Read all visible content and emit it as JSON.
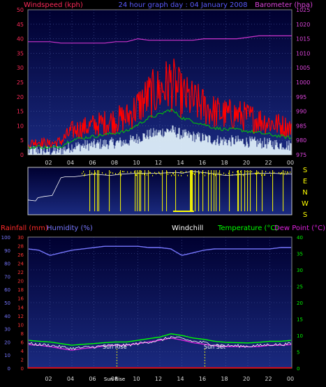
{
  "header": {
    "left_label": "Windspeed (kph)",
    "center_label": "24 hour graph day : 04 January 2008",
    "right_label": "Barometer (hpa)"
  },
  "colors": {
    "wind": "#ff0000",
    "gust_green": "#00cc00",
    "wind_light": "#e8f8ff",
    "baro": "#cc33cc",
    "direction": "#ffff00",
    "plot_top": "#000030",
    "plot_bottom": "#1a2a80",
    "rain": "#ff0000",
    "humidity": "#7777ff",
    "windchill": "#ffffff",
    "temperature": "#00ff00",
    "dewpoint": "#dd22dd",
    "sun_line": "#ffff00"
  },
  "x_ticks": [
    "02",
    "04",
    "06",
    "08",
    "10",
    "12",
    "14",
    "16",
    "18",
    "20",
    "22",
    "00"
  ],
  "top_chart": {
    "left_ticks": [
      "50",
      "45",
      "40",
      "35",
      "30",
      "25",
      "20",
      "15",
      "10",
      "5",
      "0"
    ],
    "right_ticks": [
      "1025",
      "1020",
      "1015",
      "1010",
      "1005",
      "1000",
      "995",
      "990",
      "985",
      "980",
      "975"
    ]
  },
  "direction_labels": [
    "S",
    "E",
    "N",
    "W",
    "S"
  ],
  "bottom_header": {
    "rainfall": "Rainfall (mm)",
    "humidity": "Humidity (%)",
    "windchill": "Windchill",
    "temperature": "Temperature (°C)",
    "dewpoint": "Dew Point (°C)"
  },
  "bottom_chart": {
    "left_outer_ticks": [
      "100",
      "90",
      "80",
      "70",
      "60",
      "50",
      "40",
      "30",
      "20",
      "10",
      "0"
    ],
    "left_inner_ticks": [
      "30",
      "28",
      "26",
      "24",
      "22",
      "20",
      "18",
      "16",
      "14",
      "12",
      "10",
      "8",
      "6",
      "4",
      "2",
      "0"
    ],
    "right_ticks": [
      "40",
      "35",
      "30",
      "25",
      "20",
      "15",
      "10",
      "5",
      "0"
    ]
  },
  "sun": {
    "rise_label": "Sun Rise",
    "set_label": "Sun Set",
    "x_label": "Sun Rise"
  },
  "chart_data": [
    {
      "type": "line",
      "title": "24 hour graph day : 04 January 2008",
      "ylabel": "Windspeed (kph)",
      "ylabel_right": "Barometer (hpa)",
      "ylim": [
        0,
        50
      ],
      "ylim_right": [
        975,
        1025
      ],
      "x_hours": [
        0,
        1,
        2,
        3,
        4,
        5,
        6,
        7,
        8,
        9,
        10,
        11,
        12,
        13,
        14,
        15,
        16,
        17,
        18,
        19,
        20,
        21,
        22,
        23,
        24
      ],
      "series": [
        {
          "name": "Windspeed (kph)",
          "values": [
            4,
            5,
            4,
            5,
            9,
            10,
            11,
            12,
            13,
            14,
            18,
            22,
            24,
            27,
            22,
            20,
            18,
            16,
            15,
            15,
            14,
            13,
            12,
            11,
            10
          ]
        },
        {
          "name": "Barometer (hpa)",
          "values": [
            1014,
            1014,
            1014,
            1013.5,
            1013.5,
            1013.5,
            1013.5,
            1013.5,
            1014,
            1014,
            1015,
            1014.5,
            1014.5,
            1014.5,
            1014.5,
            1014.5,
            1015,
            1015,
            1015,
            1015,
            1015.5,
            1016,
            1016,
            1016,
            1016
          ]
        }
      ]
    },
    {
      "type": "line",
      "title": "",
      "direction_hours": [
        0,
        0.7,
        0.9,
        1.5,
        2.2,
        3.0,
        3.4,
        4.2,
        6.0,
        7.5,
        8.5,
        10.0,
        12.0,
        13.5,
        14.0,
        15.0,
        16.5,
        18.0,
        20.0,
        21.0,
        22.0,
        24.0
      ],
      "direction_values": [
        30,
        28,
        35,
        38,
        40,
        80,
        82,
        82,
        88,
        85,
        88,
        90,
        90,
        92,
        90,
        94,
        90,
        85,
        88,
        90,
        90,
        88
      ]
    },
    {
      "type": "line",
      "ylabel": "Humidity (%)",
      "ylim": [
        0,
        100
      ],
      "ylim_temp": [
        0,
        40
      ],
      "x_hours": [
        0,
        1,
        2,
        3,
        4,
        5,
        6,
        7,
        8,
        9,
        10,
        11,
        12,
        13,
        14,
        15,
        16,
        17,
        18,
        19,
        20,
        21,
        22,
        23,
        24
      ],
      "series": [
        {
          "name": "Humidity (%)",
          "values": [
            91,
            90,
            86,
            88,
            90,
            91,
            92,
            93,
            93,
            93,
            93,
            92,
            92,
            91,
            86,
            88,
            90,
            91,
            91,
            91,
            91,
            91,
            91,
            92,
            92
          ]
        },
        {
          "name": "Temperature (°C)",
          "values": [
            8.5,
            8.2,
            8,
            7.5,
            7,
            7.3,
            7.5,
            7.8,
            8,
            8,
            8.5,
            9,
            9.5,
            10.5,
            10,
            9.2,
            8.8,
            8.2,
            7.9,
            7.8,
            7.7,
            7.9,
            8.2,
            8.2,
            8.5
          ]
        },
        {
          "name": "Windchill",
          "values": [
            7.5,
            7.2,
            7,
            6.5,
            6,
            6.3,
            6.5,
            6.8,
            7,
            7,
            7.5,
            8,
            8.5,
            9.5,
            9,
            8.2,
            7.8,
            7.2,
            6.9,
            6.8,
            6.7,
            6.9,
            7.2,
            7.2,
            7.5
          ]
        },
        {
          "name": "Dew Point (°C)",
          "values": [
            7.2,
            7,
            6.6,
            6,
            5.5,
            6,
            6.3,
            6.8,
            7,
            7,
            7.5,
            8,
            8.5,
            9.2,
            8.6,
            7.8,
            7.3,
            6.8,
            6.6,
            6.6,
            6.5,
            6.6,
            7,
            7,
            7.2
          ]
        },
        {
          "name": "Rainfall (mm)",
          "values": [
            0,
            0,
            0,
            0,
            0,
            0,
            0,
            0,
            0,
            0,
            0,
            0,
            0,
            0,
            0,
            0,
            0,
            0,
            0,
            0,
            0,
            0,
            0,
            0,
            0
          ]
        }
      ],
      "sunrise_hour": 8.1,
      "sunset_hour": 16.1
    }
  ]
}
